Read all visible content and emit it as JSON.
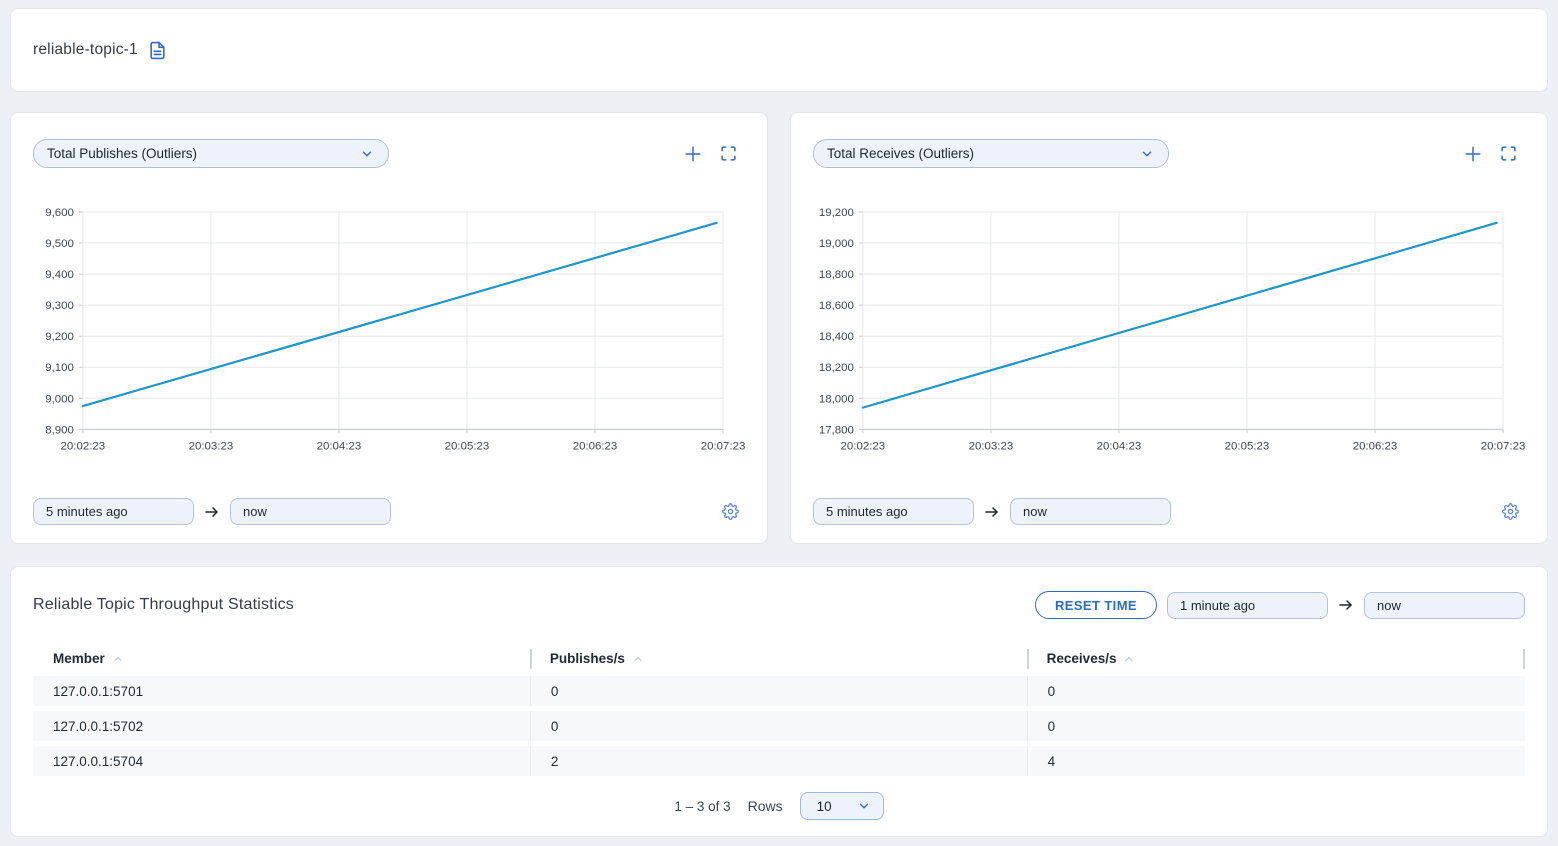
{
  "header": {
    "title": "reliable-topic-1"
  },
  "charts": [
    {
      "selector_label": "Total Publishes (Outliers)",
      "time_from": "5 minutes ago",
      "time_to": "now"
    },
    {
      "selector_label": "Total Receives (Outliers)",
      "time_from": "5 minutes ago",
      "time_to": "now"
    }
  ],
  "chart_data": [
    {
      "type": "line",
      "title": "Total Publishes (Outliers)",
      "x_tick_labels": [
        "20:02:23",
        "20:03:23",
        "20:04:23",
        "20:05:23",
        "20:06:23",
        "20:07:23"
      ],
      "y_ticks": [
        8900,
        9000,
        9100,
        9200,
        9300,
        9400,
        9500,
        9600
      ],
      "ylim": [
        8900,
        9600
      ],
      "grid": true,
      "legend": "none",
      "series": [
        {
          "name": "Total Publishes",
          "color": "#1f95c8",
          "points": [
            {
              "x": 0,
              "y": 8975
            },
            {
              "x": 4.95,
              "y": 9565
            }
          ]
        }
      ]
    },
    {
      "type": "line",
      "title": "Total Receives (Outliers)",
      "x_tick_labels": [
        "20:02:23",
        "20:03:23",
        "20:04:23",
        "20:05:23",
        "20:06:23",
        "20:07:23"
      ],
      "y_ticks": [
        17800,
        18000,
        18200,
        18400,
        18600,
        18800,
        19000,
        19200
      ],
      "ylim": [
        17800,
        19200
      ],
      "grid": true,
      "legend": "none",
      "series": [
        {
          "name": "Total Receives",
          "color": "#1f95c8",
          "points": [
            {
              "x": 0,
              "y": 17940
            },
            {
              "x": 4.95,
              "y": 19130
            }
          ]
        }
      ]
    }
  ],
  "stats": {
    "title": "Reliable Topic Throughput Statistics",
    "reset_label": "RESET TIME",
    "time_from": "1 minute ago",
    "time_to": "now",
    "table": {
      "columns": [
        "Member",
        "Publishes/s",
        "Receives/s"
      ],
      "rows": [
        [
          "127.0.0.1:5701",
          "0",
          "0"
        ],
        [
          "127.0.0.1:5702",
          "0",
          "0"
        ],
        [
          "127.0.0.1:5704",
          "2",
          "4"
        ]
      ]
    },
    "pagination": {
      "range_text": "1 – 3 of 3",
      "rows_label": "Rows",
      "rows_value": "10"
    }
  },
  "colors": {
    "accent": "#2f6bc6",
    "chart_line": "#1f95c8",
    "grid": "#e6e8eb",
    "axis": "#c2c7cd"
  }
}
